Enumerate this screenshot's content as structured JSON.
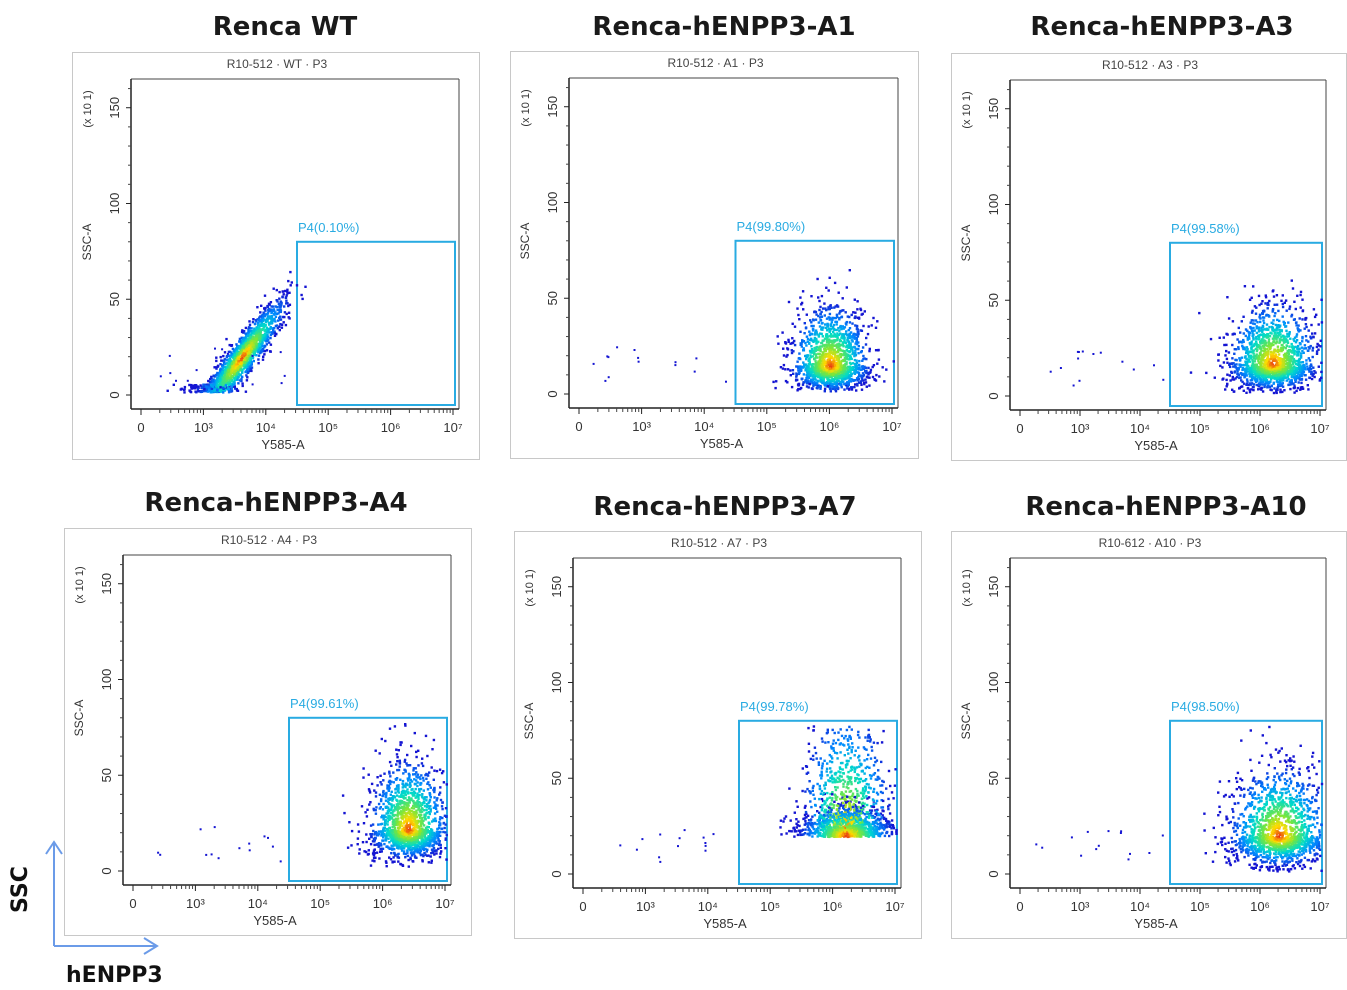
{
  "chart_data": [
    {
      "type": "scatter",
      "title": "Renca WT",
      "header": "R10-512 · WT · P3",
      "xlabel": "Y585-A",
      "ylabel": "SSC-A",
      "yexp": "(x 10",
      "x_ticks": [
        "0",
        "10³",
        "10⁴",
        "10⁵",
        "10⁶",
        "10⁷"
      ],
      "y_ticks": [
        "0",
        "50",
        "100",
        "150"
      ],
      "ylim": [
        0,
        165
      ],
      "gate": {
        "name": "P4",
        "percent": "P4(0.10%)"
      },
      "population": {
        "center_x_decade": 3.6,
        "center_y": 20,
        "spread_x": 0.35,
        "spread_y": 14,
        "shape": "diagonal"
      }
    },
    {
      "type": "scatter",
      "title": "Renca-hENPP3-A1",
      "header": "R10-512 · A1 · P3",
      "xlabel": "Y585-A",
      "ylabel": "SSC-A",
      "yexp": "(x 10",
      "x_ticks": [
        "0",
        "10³",
        "10⁴",
        "10⁵",
        "10⁶",
        "10⁷"
      ],
      "y_ticks": [
        "0",
        "50",
        "100",
        "150"
      ],
      "ylim": [
        0,
        165
      ],
      "gate": {
        "name": "P4",
        "percent": "P4(99.80%)"
      },
      "population": {
        "center_x_decade": 6.0,
        "center_y": 15,
        "spread_x": 0.3,
        "spread_y": 14,
        "shape": "blob"
      }
    },
    {
      "type": "scatter",
      "title": "Renca-hENPP3-A3",
      "header": "R10-512 · A3 · P3",
      "xlabel": "Y585-A",
      "ylabel": "SSC-A",
      "yexp": "(x 10",
      "x_ticks": [
        "0",
        "10³",
        "10⁴",
        "10⁵",
        "10⁶",
        "10⁷"
      ],
      "y_ticks": [
        "0",
        "50",
        "100",
        "150"
      ],
      "ylim": [
        0,
        165
      ],
      "gate": {
        "name": "P4",
        "percent": "P4(99.58%)"
      },
      "population": {
        "center_x_decade": 6.2,
        "center_y": 17,
        "spread_x": 0.35,
        "spread_y": 14,
        "shape": "blob"
      }
    },
    {
      "type": "scatter",
      "title": "Renca-hENPP3-A4",
      "header": "R10-512 · A4 · P3",
      "xlabel": "Y585-A",
      "ylabel": "SSC-A",
      "yexp": "(x 10",
      "x_ticks": [
        "0",
        "10³",
        "10⁴",
        "10⁵",
        "10⁶",
        "10⁷"
      ],
      "y_ticks": [
        "0",
        "50",
        "100",
        "150"
      ],
      "ylim": [
        0,
        165
      ],
      "gate": {
        "name": "P4",
        "percent": "P4(99.61%)"
      },
      "population": {
        "center_x_decade": 6.4,
        "center_y": 22,
        "spread_x": 0.3,
        "spread_y": 16,
        "shape": "blob"
      }
    },
    {
      "type": "scatter",
      "title": "Renca-hENPP3-A7",
      "header": "R10-512 · A7 · P3",
      "xlabel": "Y585-A",
      "ylabel": "SSC-A",
      "yexp": "(x 10",
      "x_ticks": [
        "0",
        "10³",
        "10⁴",
        "10⁵",
        "10⁶",
        "10⁷"
      ],
      "y_ticks": [
        "0",
        "50",
        "100",
        "150"
      ],
      "ylim": [
        0,
        165
      ],
      "gate": {
        "name": "P4",
        "percent": "P4(99.78%)"
      },
      "population": {
        "center_x_decade": 6.2,
        "center_y": 20,
        "spread_x": 0.35,
        "spread_y": 20,
        "shape": "tall"
      }
    },
    {
      "type": "scatter",
      "title": "Renca-hENPP3-A10",
      "header": "R10-612 · A10 · P3",
      "xlabel": "Y585-A",
      "ylabel": "SSC-A",
      "yexp": "(x 10",
      "x_ticks": [
        "0",
        "10³",
        "10⁴",
        "10⁵",
        "10⁶",
        "10⁷"
      ],
      "y_ticks": [
        "0",
        "50",
        "100",
        "150"
      ],
      "ylim": [
        0,
        165
      ],
      "gate": {
        "name": "P4",
        "percent": "P4(98.50%)"
      },
      "population": {
        "center_x_decade": 6.3,
        "center_y": 20,
        "spread_x": 0.4,
        "spread_y": 16,
        "shape": "blob"
      }
    }
  ],
  "corner": {
    "y_label": "SSC",
    "x_label": "hENPP3"
  },
  "colors": {
    "gate": "#29abe2",
    "axis": "#333333",
    "header_text": "#444444"
  }
}
